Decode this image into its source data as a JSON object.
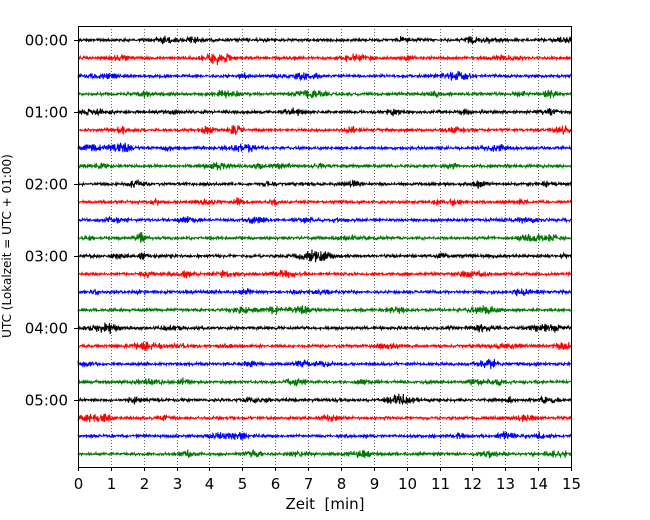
{
  "chart_data": {
    "type": "line",
    "chart_kind": "helicorder",
    "title": "",
    "xlabel": "Zeit  [min]",
    "ylabel": "UTC (Lokalzeit = UTC + 01:00)",
    "xlim": [
      0,
      15
    ],
    "x_ticks": [
      0,
      1,
      2,
      3,
      4,
      5,
      6,
      7,
      8,
      9,
      10,
      11,
      12,
      13,
      14,
      15
    ],
    "y_tick_labels": [
      "00:00",
      "01:00",
      "02:00",
      "03:00",
      "04:00",
      "05:00"
    ],
    "grid": "vertical dotted",
    "trace_minutes": 15,
    "trace_colors": [
      "#000000",
      "#ff0000",
      "#0000ff",
      "#007700"
    ],
    "traces": [
      {
        "start": "00:00",
        "color": "#000000"
      },
      {
        "start": "00:15",
        "color": "#ff0000"
      },
      {
        "start": "00:30",
        "color": "#0000ff"
      },
      {
        "start": "00:45",
        "color": "#007700"
      },
      {
        "start": "01:00",
        "color": "#000000"
      },
      {
        "start": "01:15",
        "color": "#ff0000"
      },
      {
        "start": "01:30",
        "color": "#0000ff"
      },
      {
        "start": "01:45",
        "color": "#007700"
      },
      {
        "start": "02:00",
        "color": "#000000"
      },
      {
        "start": "02:15",
        "color": "#ff0000"
      },
      {
        "start": "02:30",
        "color": "#0000ff"
      },
      {
        "start": "02:45",
        "color": "#007700"
      },
      {
        "start": "03:00",
        "color": "#000000"
      },
      {
        "start": "03:15",
        "color": "#ff0000"
      },
      {
        "start": "03:30",
        "color": "#0000ff"
      },
      {
        "start": "03:45",
        "color": "#007700"
      },
      {
        "start": "04:00",
        "color": "#000000"
      },
      {
        "start": "04:15",
        "color": "#ff0000"
      },
      {
        "start": "04:30",
        "color": "#0000ff"
      },
      {
        "start": "04:45",
        "color": "#007700"
      },
      {
        "start": "05:00",
        "color": "#000000"
      },
      {
        "start": "05:15",
        "color": "#ff0000"
      },
      {
        "start": "05:30",
        "color": "#0000ff"
      },
      {
        "start": "05:45",
        "color": "#007700"
      }
    ]
  }
}
